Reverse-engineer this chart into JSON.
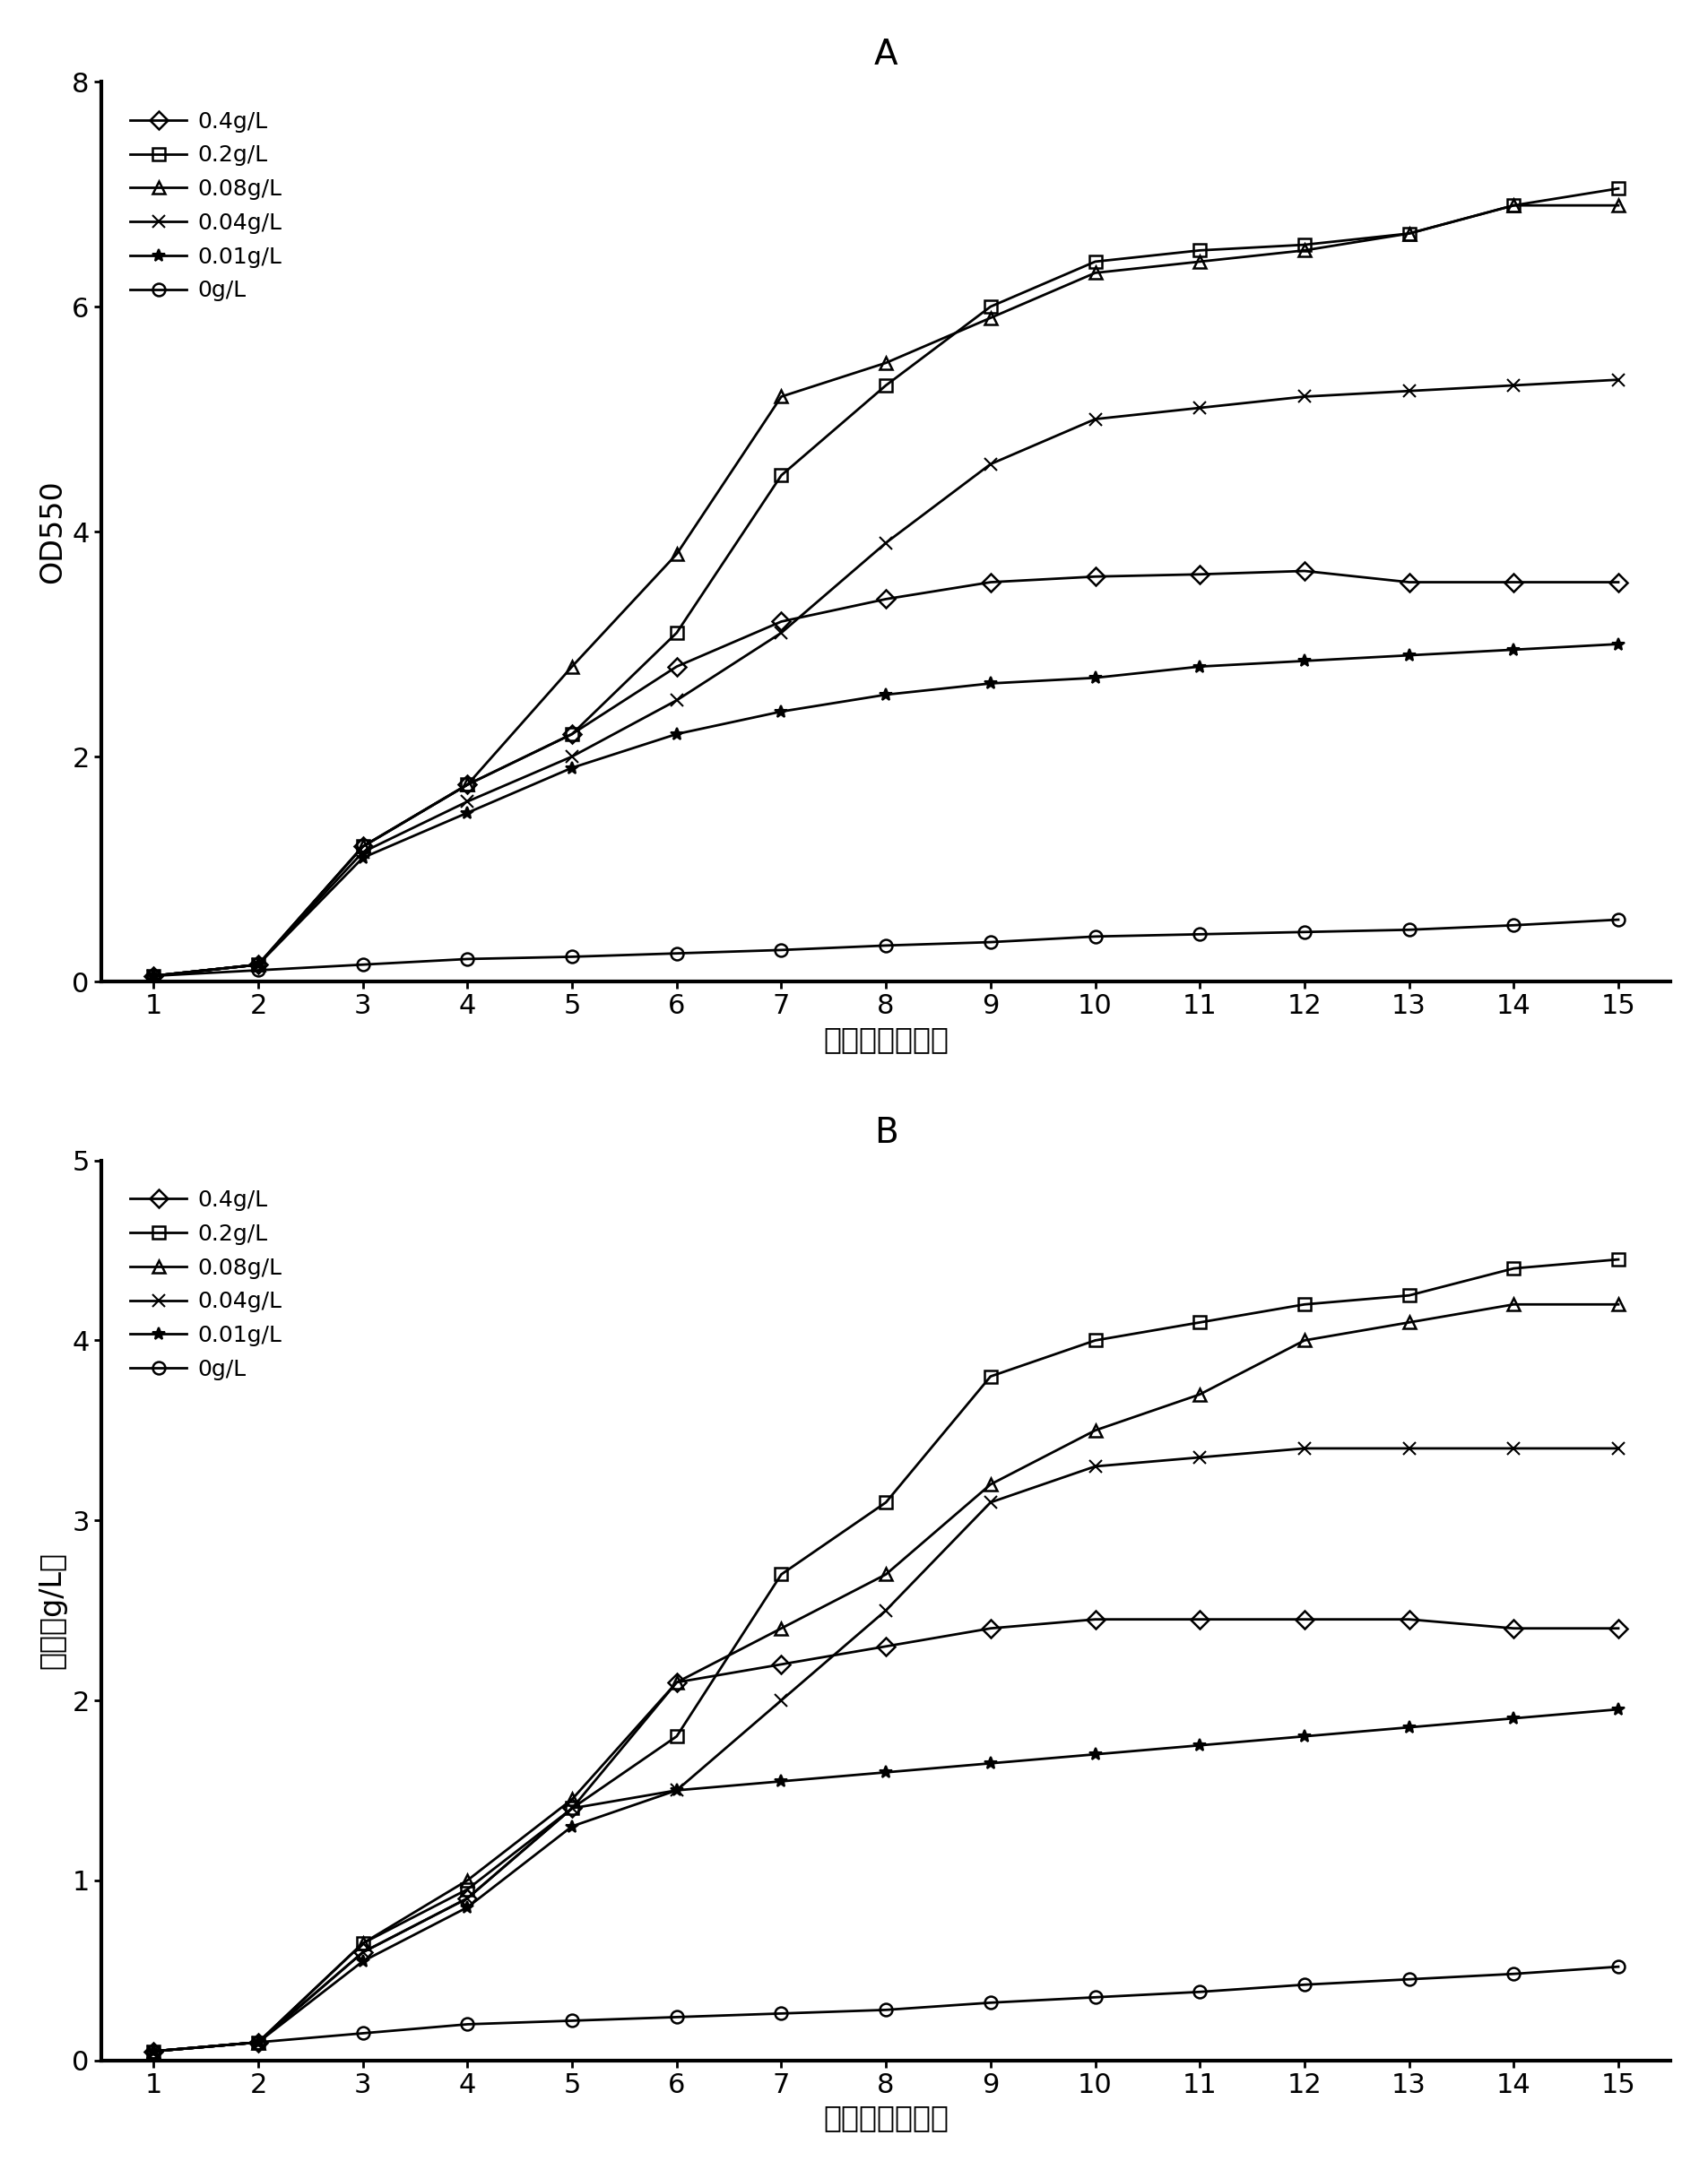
{
  "days": [
    1,
    2,
    3,
    4,
    5,
    6,
    7,
    8,
    9,
    10,
    11,
    12,
    13,
    14,
    15
  ],
  "panel_A": {
    "title": "A",
    "ylabel": "OD550",
    "xlabel": "培养时间（天）",
    "ylim": [
      0,
      8
    ],
    "yticks": [
      0,
      2,
      4,
      6,
      8
    ],
    "series": [
      {
        "label": "0.4g/L",
        "marker": "D",
        "values": [
          0.05,
          0.15,
          1.2,
          1.75,
          2.2,
          2.8,
          3.2,
          3.4,
          3.55,
          3.6,
          3.62,
          3.65,
          3.55,
          3.55,
          3.55
        ]
      },
      {
        "label": "0.2g/L",
        "marker": "s",
        "values": [
          0.05,
          0.15,
          1.2,
          1.75,
          2.2,
          3.1,
          4.5,
          5.3,
          6.0,
          6.4,
          6.5,
          6.55,
          6.65,
          6.9,
          7.05
        ]
      },
      {
        "label": "0.08g/L",
        "marker": "^",
        "values": [
          0.05,
          0.15,
          1.2,
          1.75,
          2.8,
          3.8,
          5.2,
          5.5,
          5.9,
          6.3,
          6.4,
          6.5,
          6.65,
          6.9,
          6.9
        ]
      },
      {
        "label": "0.04g/L",
        "marker": "x",
        "values": [
          0.05,
          0.15,
          1.15,
          1.6,
          2.0,
          2.5,
          3.1,
          3.9,
          4.6,
          5.0,
          5.1,
          5.2,
          5.25,
          5.3,
          5.35
        ]
      },
      {
        "label": "0.01g/L",
        "marker": "*",
        "values": [
          0.05,
          0.15,
          1.1,
          1.5,
          1.9,
          2.2,
          2.4,
          2.55,
          2.65,
          2.7,
          2.8,
          2.85,
          2.9,
          2.95,
          3.0
        ]
      },
      {
        "label": "0g/L",
        "marker": "o",
        "values": [
          0.05,
          0.1,
          0.15,
          0.2,
          0.22,
          0.25,
          0.28,
          0.32,
          0.35,
          0.4,
          0.42,
          0.44,
          0.46,
          0.5,
          0.55
        ]
      }
    ]
  },
  "panel_B": {
    "title": "B",
    "ylabel": "干重（g/L）",
    "xlabel": "培养时间（天）",
    "ylim": [
      0,
      5
    ],
    "yticks": [
      0,
      1,
      2,
      3,
      4,
      5
    ],
    "series": [
      {
        "label": "0.4g/L",
        "marker": "D",
        "values": [
          0.05,
          0.1,
          0.6,
          0.9,
          1.4,
          2.1,
          2.2,
          2.3,
          2.4,
          2.45,
          2.45,
          2.45,
          2.45,
          2.4,
          2.4
        ]
      },
      {
        "label": "0.2g/L",
        "marker": "s",
        "values": [
          0.05,
          0.1,
          0.65,
          0.95,
          1.4,
          1.8,
          2.7,
          3.1,
          3.8,
          4.0,
          4.1,
          4.2,
          4.25,
          4.4,
          4.45
        ]
      },
      {
        "label": "0.08g/L",
        "marker": "^",
        "values": [
          0.05,
          0.1,
          0.65,
          1.0,
          1.45,
          2.1,
          2.4,
          2.7,
          3.2,
          3.5,
          3.7,
          4.0,
          4.1,
          4.2,
          4.2
        ]
      },
      {
        "label": "0.04g/L",
        "marker": "x",
        "values": [
          0.05,
          0.1,
          0.6,
          0.9,
          1.4,
          1.5,
          2.0,
          2.5,
          3.1,
          3.3,
          3.35,
          3.4,
          3.4,
          3.4,
          3.4
        ]
      },
      {
        "label": "0.01g/L",
        "marker": "*",
        "values": [
          0.05,
          0.1,
          0.55,
          0.85,
          1.3,
          1.5,
          1.55,
          1.6,
          1.65,
          1.7,
          1.75,
          1.8,
          1.85,
          1.9,
          1.95
        ]
      },
      {
        "label": "0g/L",
        "marker": "o",
        "values": [
          0.05,
          0.1,
          0.15,
          0.2,
          0.22,
          0.24,
          0.26,
          0.28,
          0.32,
          0.35,
          0.38,
          0.42,
          0.45,
          0.48,
          0.52
        ]
      }
    ]
  },
  "line_color": "#000000",
  "bg_color": "#ffffff",
  "title_fontsize": 28,
  "label_fontsize": 24,
  "tick_fontsize": 22,
  "legend_fontsize": 18,
  "linewidth": 2.0,
  "markersize": 10
}
